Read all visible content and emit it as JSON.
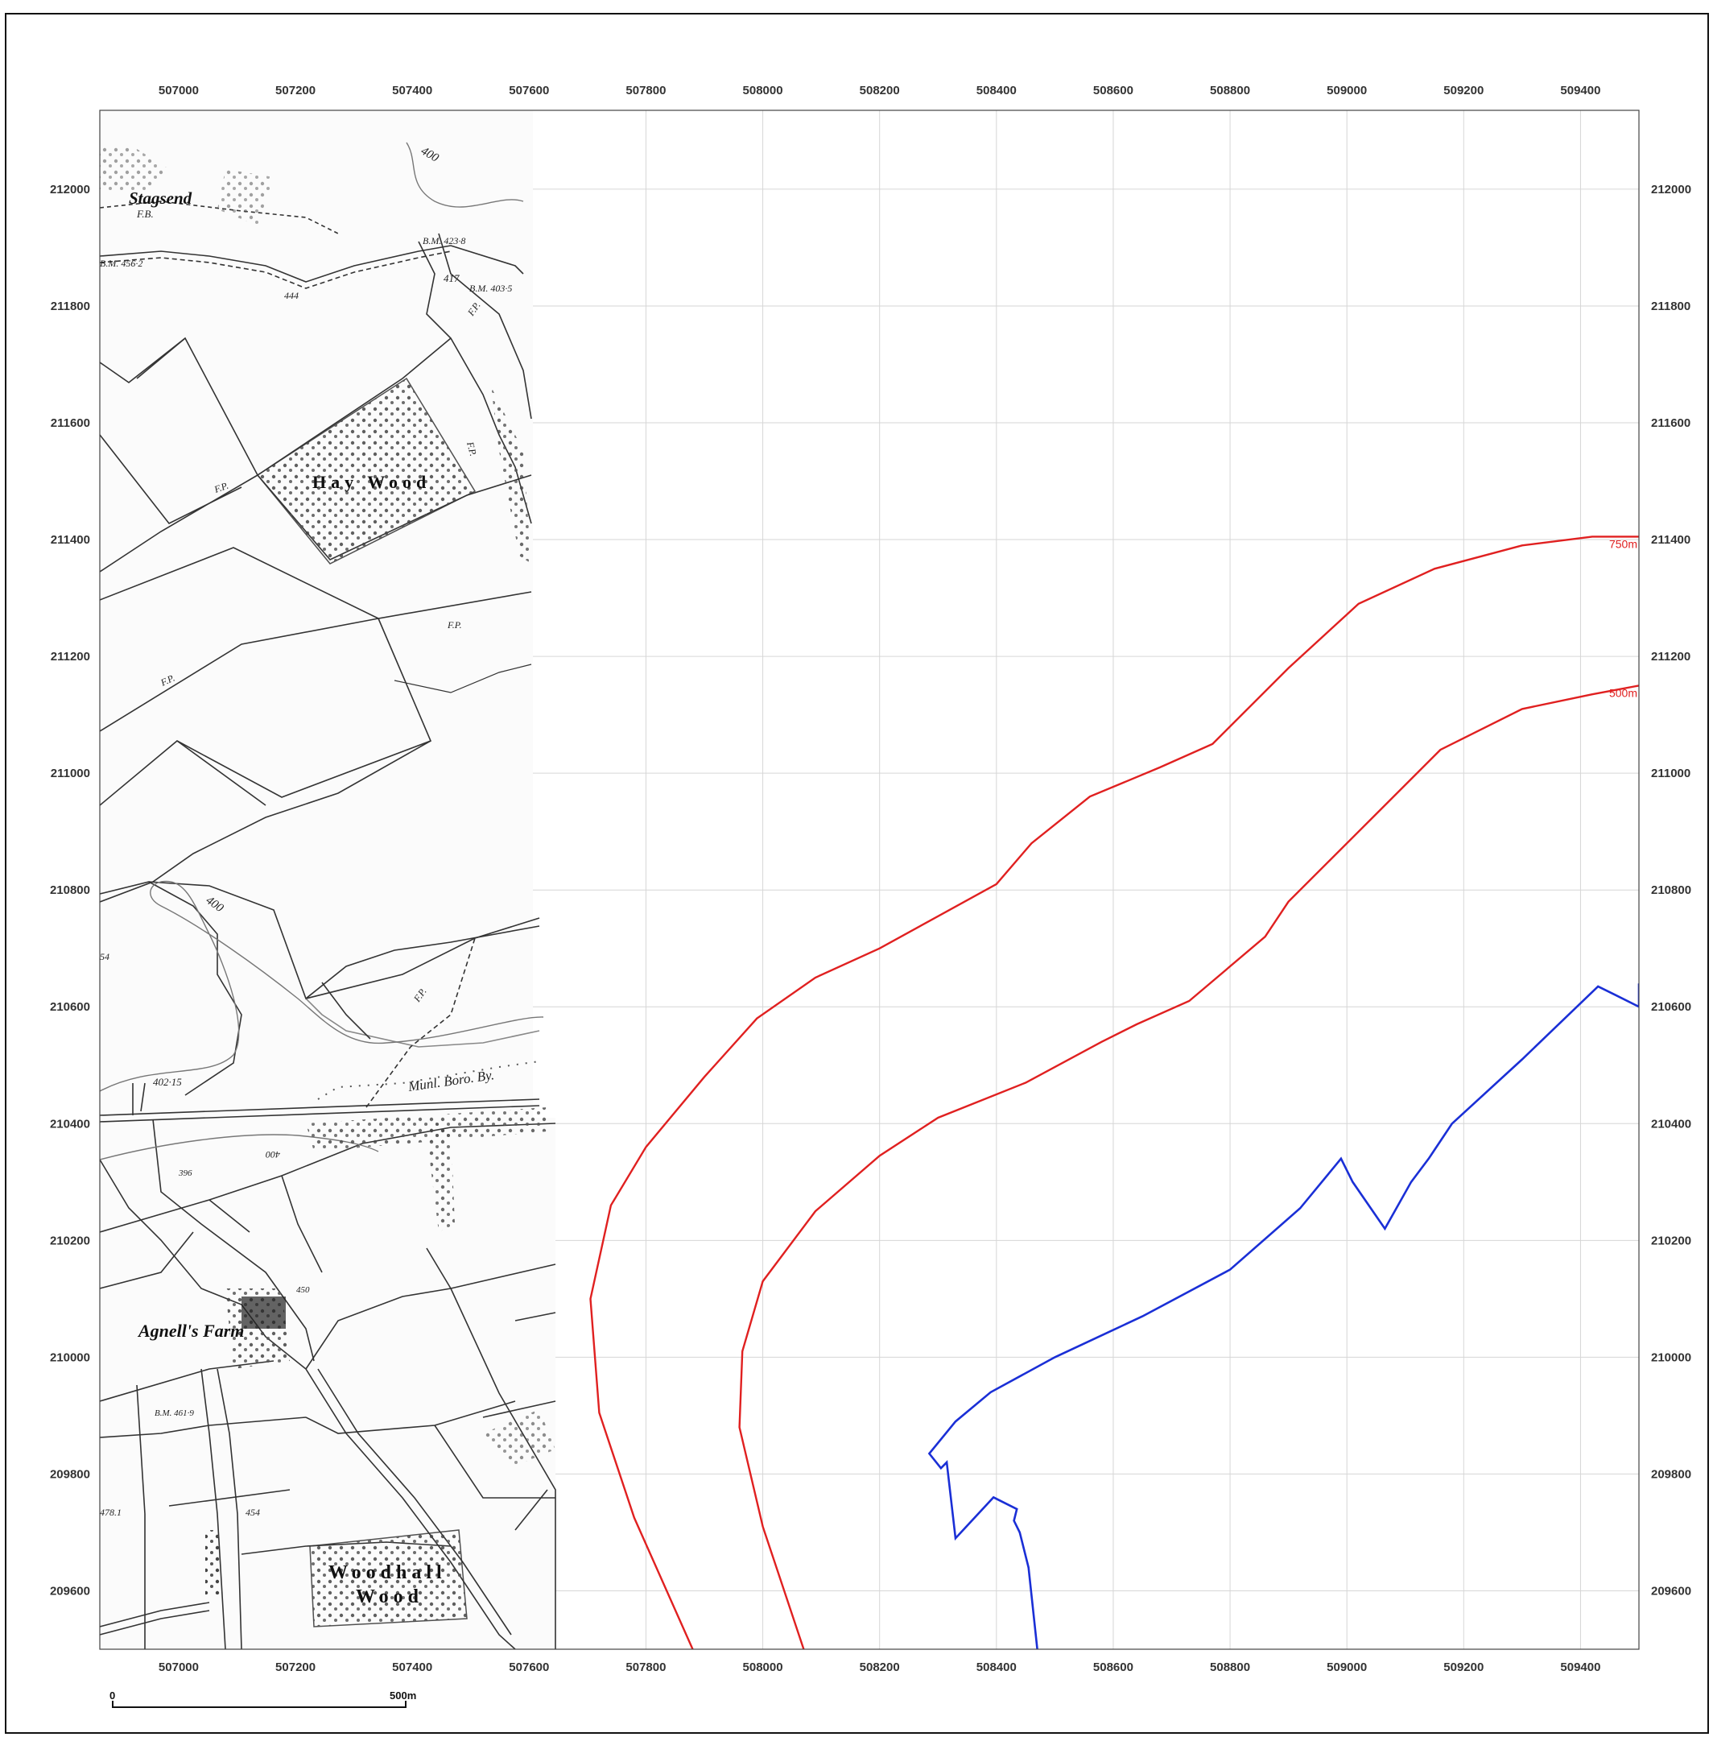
{
  "grid": {
    "eastings": [
      "507000",
      "507200",
      "507400",
      "507600",
      "507800",
      "508000",
      "508200",
      "508400",
      "508600",
      "508800",
      "509000",
      "509200",
      "509400"
    ],
    "northings": [
      "212000",
      "211800",
      "211600",
      "211400",
      "211200",
      "211000",
      "210800",
      "210600",
      "210400",
      "210200",
      "210000",
      "209800",
      "209600"
    ]
  },
  "extent": {
    "e_min": 506865,
    "e_max": 509500,
    "n_min": 209500,
    "n_max": 212135
  },
  "colors": {
    "buffer": "#e02020",
    "boundary": "#1a2fd6",
    "grid": "#d6d6d6",
    "map_ink": "#333333"
  },
  "buffers": [
    {
      "label": "750m",
      "points": [
        [
          507880,
          209500
        ],
        [
          507780,
          209725
        ],
        [
          507720,
          209905
        ],
        [
          507705,
          210100
        ],
        [
          507740,
          210260
        ],
        [
          507800,
          210360
        ],
        [
          507900,
          210480
        ],
        [
          507990,
          210580
        ],
        [
          508090,
          210650
        ],
        [
          508200,
          210700
        ],
        [
          508400,
          210810
        ],
        [
          508460,
          210880
        ],
        [
          508560,
          210960
        ],
        [
          508680,
          211010
        ],
        [
          508770,
          211050
        ],
        [
          508900,
          211180
        ],
        [
          509020,
          211290
        ],
        [
          509150,
          211350
        ],
        [
          509300,
          211390
        ],
        [
          509420,
          211405
        ],
        [
          509500,
          211405
        ]
      ]
    },
    {
      "label": "500m",
      "points": [
        [
          508070,
          209500
        ],
        [
          508000,
          209710
        ],
        [
          507960,
          209880
        ],
        [
          507965,
          210010
        ],
        [
          508000,
          210130
        ],
        [
          508090,
          210250
        ],
        [
          508200,
          210345
        ],
        [
          508300,
          210410
        ],
        [
          508450,
          210470
        ],
        [
          508580,
          210540
        ],
        [
          508640,
          210570
        ],
        [
          508730,
          210610
        ],
        [
          508860,
          210720
        ],
        [
          508900,
          210780
        ],
        [
          509020,
          210900
        ],
        [
          509160,
          211040
        ],
        [
          509300,
          211110
        ],
        [
          509420,
          211135
        ],
        [
          509500,
          211150
        ]
      ]
    }
  ],
  "boundary": [
    [
      508470,
      209500
    ],
    [
      508455,
      209640
    ],
    [
      508440,
      209700
    ],
    [
      508430,
      209720
    ],
    [
      508435,
      209740
    ],
    [
      508395,
      209760
    ],
    [
      508330,
      209690
    ],
    [
      508315,
      209820
    ],
    [
      508305,
      209810
    ],
    [
      508285,
      209835
    ],
    [
      508330,
      209890
    ],
    [
      508390,
      209940
    ],
    [
      508500,
      210000
    ],
    [
      508650,
      210070
    ],
    [
      508800,
      210150
    ],
    [
      508920,
      210255
    ],
    [
      508990,
      210340
    ],
    [
      509010,
      210300
    ],
    [
      509065,
      210220
    ],
    [
      509110,
      210300
    ],
    [
      509140,
      210340
    ],
    [
      509180,
      210400
    ],
    [
      509300,
      210510
    ],
    [
      509430,
      210635
    ],
    [
      509460,
      210620
    ],
    [
      509500,
      210600
    ],
    [
      509500,
      210640
    ]
  ],
  "map_labels": {
    "stagsend": "Stagsend",
    "fb": "F.B.",
    "bm1": "B.M. 456·2",
    "bm2": "B.M. 423·8",
    "h444": "444",
    "h417": "417",
    "bm3": "B.M. 403·5",
    "fp1": "F.P.",
    "fp2": "F.P.",
    "fp3": "F.P.",
    "fp4": "F.P.",
    "fp5": "F.P.",
    "fp6": "F.P.",
    "c400a": "400",
    "c400b": "400",
    "c400c": "400",
    "hay_wood": "Hay Wood",
    "h54": "54",
    "h40215": "402·15",
    "munl": "Munl. Boro. By.",
    "h396": "396",
    "h450": "450",
    "agnells": "Agnell's Farm",
    "bm4": "B.M. 461·9",
    "h4781": "478.1",
    "h454": "454",
    "woodhall": "Woodhall",
    "wood": "Wood"
  },
  "scale_bar": {
    "zero": "0",
    "length_label": "500m"
  }
}
